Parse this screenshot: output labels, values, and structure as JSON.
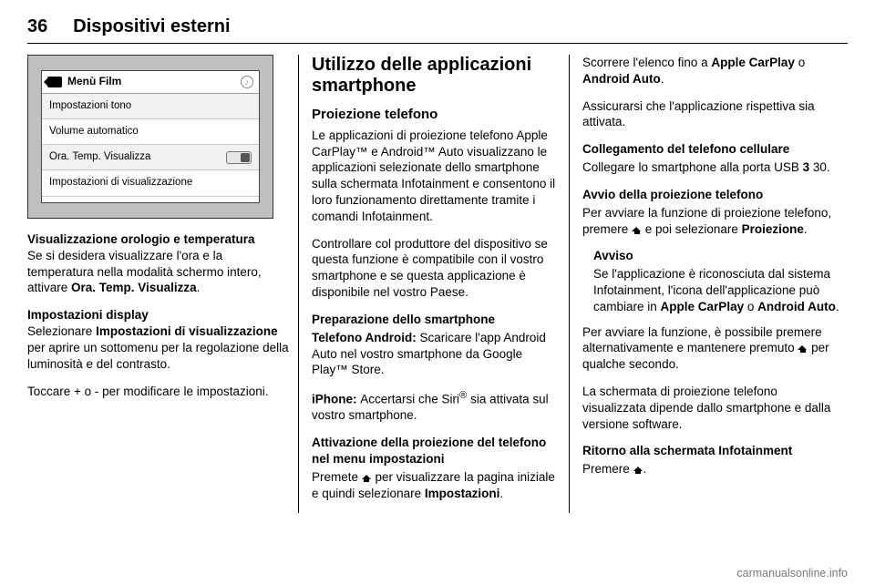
{
  "header": {
    "page_number": "36",
    "chapter_title": "Dispositivi esterni"
  },
  "screenshot": {
    "title": "Menù Film",
    "rows": [
      {
        "label": "Impostazioni tono",
        "has_toggle": false
      },
      {
        "label": "Volume automatico",
        "has_toggle": false
      },
      {
        "label": "Ora. Temp. Visualizza",
        "has_toggle": true
      },
      {
        "label": "Impostazioni di visualizzazione",
        "has_toggle": false
      }
    ]
  },
  "col1": {
    "h_time_temp": "Visualizzazione orologio e temperatura",
    "p_time_temp_1": "Se si desidera visualizzare l'ora e la temperatura nella modalità schermo intero, attivare ",
    "p_time_temp_bold": "Ora. Temp. Visualizza",
    "p_time_temp_2": ".",
    "h_display": "Impostazioni display",
    "p_display_1a": "Selezionare ",
    "p_display_1b": "Impostazioni di visualizzazione",
    "p_display_1c": " per aprire un sotto­menu per la regolazione della lumi­nosità e del contrasto.",
    "p_display_2": "Toccare + o - per modificare le impo­stazioni."
  },
  "col2": {
    "h2": "Utilizzo delle applicazioni smartphone",
    "h3_proj": "Proiezione telefono",
    "p_proj": "Le applicazioni di proiezione telefono Apple CarPlay™ e Android™ Auto visualizzano le applicazioni selezio­nate dello smartphone sulla scher­mata Infotainment e consentono il loro funzionamento direttamente tramite i comandi Infotainment.",
    "p_check": "Controllare col produttore del dispo­sitivo se questa funzione è compati­bile con il vostro smartphone e se questa applicazione è disponibile nel vostro Paese.",
    "h4_prep": "Preparazione dello smartphone",
    "p_android_a": "Telefono Android: ",
    "p_android_b": "Scaricare l'app Android Auto nel vostro smartphone da Google Play™ Store.",
    "p_iphone_a": "iPhone: ",
    "p_iphone_b": "Accertarsi che Siri",
    "p_iphone_c": " sia atti­vata sul vostro smartphone.",
    "siri_reg": "®",
    "h4_attiv": "Attivazione della proiezione del telefono nel menu impostazioni",
    "p_attiv_a": "Premete ",
    "p_attiv_b": " per visualizzare la pagina iniziale e quindi selezionare ",
    "p_attiv_c": "Impostazioni",
    "p_attiv_d": "."
  },
  "col3": {
    "p_scroll_a": "Scorrere l'elenco fino a ",
    "p_scroll_b": "Apple CarPlay",
    "p_scroll_or": " o ",
    "p_scroll_c": "Android Auto",
    "p_scroll_d": ".",
    "p_ensure": "Assicurarsi che l'applicazione rispet­tiva sia attivata.",
    "h4_conn": "Collegamento del telefono cellulare",
    "p_conn_a": "Collegare lo smartphone alla porta USB ",
    "p_conn_ref": "3",
    "p_conn_b": " 30.",
    "h4_start": "Avvio della proiezione telefono",
    "p_start_a": "Per avviare la funzione di proiezione telefono, premere ",
    "p_start_b": " e poi selezio­nare ",
    "p_start_c": "Proiezione",
    "p_start_d": ".",
    "note_label": "Avviso",
    "note_a": "Se l'applicazione è riconosciuta dal sistema Infotainment, l'icona dell'ap­plicazione può cambiare in ",
    "note_b": "Apple CarPlay",
    "note_or": " o ",
    "note_c": "Android Auto",
    "note_d": ".",
    "p_alt_a": "Per avviare la funzione, è possibile premere alternativamente e mante­nere premuto ",
    "p_alt_b": " per qualche secondo.",
    "p_screen": "La schermata di proiezione telefono visualizzata dipende dallo smart­phone e dalla versione software.",
    "h4_return": "Ritorno alla schermata Infotainment",
    "p_return_a": "Premere ",
    "p_return_b": "."
  },
  "footer": "carmanualsonline.info"
}
